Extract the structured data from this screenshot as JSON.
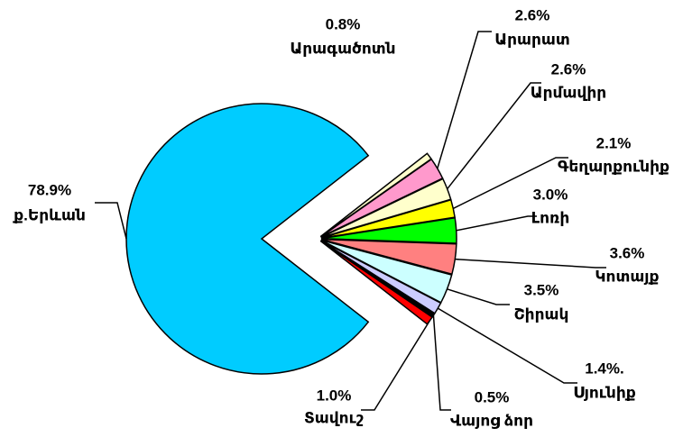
{
  "chart_data": {
    "type": "pie",
    "categories": [
      "ք.Երևան",
      "Արագածոտն",
      "Արարատ",
      "Արմավիր",
      "Գեղարքունիք",
      "Լոռի",
      "Կոտայք",
      "Շիրակ",
      "Սյունիք",
      "Վայոց ձոր",
      "Տավուշ"
    ],
    "values": [
      78.9,
      0.8,
      2.6,
      2.6,
      2.1,
      3.0,
      3.6,
      3.5,
      1.4,
      0.5,
      1.0
    ],
    "value_labels": [
      "78.9%",
      "0.8%",
      "2.6%",
      "2.6%",
      "2.1%",
      "3.0%",
      "3.6%",
      "3.5%",
      "1.4%.",
      "0.5%",
      "1.0%"
    ],
    "colors": [
      "#00ccff",
      "#ffffcc",
      "#ff99cc",
      "#ffffcc",
      "#ffff00",
      "#00ff00",
      "#ff8080",
      "#ccffff",
      "#ccccff",
      "#000000",
      "#ff0000"
    ]
  }
}
